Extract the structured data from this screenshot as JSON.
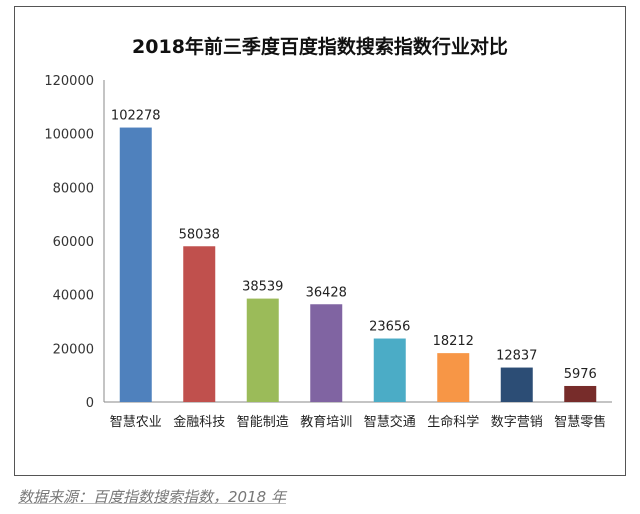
{
  "chart_data": {
    "type": "bar",
    "title": "2018年前三季度百度指数搜索指数行业对比",
    "categories": [
      "智慧农业",
      "金融科技",
      "智能制造",
      "教育培训",
      "智慧交通",
      "生命科学",
      "数字营销",
      "智慧零售"
    ],
    "values": [
      102278,
      58038,
      38539,
      36428,
      23656,
      18212,
      12837,
      5976
    ],
    "colors": [
      "#4f81bd",
      "#c0504d",
      "#9bbb59",
      "#8064a2",
      "#4bacc6",
      "#f79646",
      "#2c4d75",
      "#772c2a"
    ],
    "ylim": [
      0,
      120000
    ],
    "yticks": [
      0,
      20000,
      40000,
      60000,
      80000,
      100000,
      120000
    ],
    "xlabel": "",
    "ylabel": "",
    "grid": false,
    "legend": "none"
  },
  "source_note": "数据来源：百度指数搜索指数，2018 年"
}
